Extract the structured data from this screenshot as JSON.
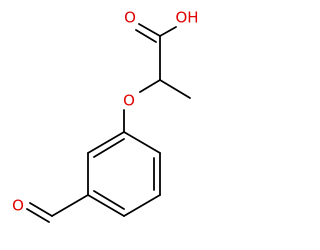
{
  "atoms": [
    {
      "label": "O"
    },
    {
      "label": "OH"
    },
    {
      "label": "O"
    },
    {
      "label": "O"
    }
  ]
}
